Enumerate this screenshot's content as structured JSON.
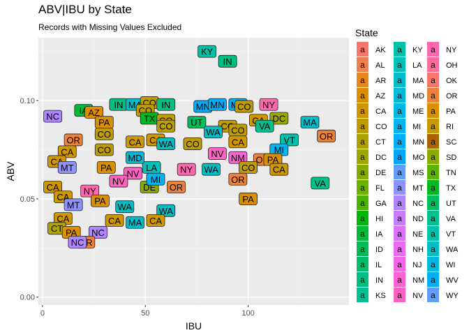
{
  "chart_data": {
    "type": "scatter",
    "title": "ABV|IBU by State",
    "subtitle": "Records with Missing Values Excluded",
    "xlabel": "IBU",
    "ylabel": "ABV",
    "xlim": [
      -2,
      149
    ],
    "ylim": [
      -0.004,
      0.132
    ],
    "xticks": [
      0,
      50,
      100
    ],
    "yticks": [
      0.0,
      0.05,
      0.1
    ],
    "ytick_labels": [
      "0.00",
      "0.05",
      "0.10"
    ],
    "grid": true,
    "legend_title": "State",
    "legend_position": "right",
    "states": [
      "AK",
      "AL",
      "AR",
      "AZ",
      "CA",
      "CO",
      "CT",
      "DC",
      "DE",
      "FL",
      "GA",
      "HI",
      "IA",
      "ID",
      "IL",
      "IN",
      "KS",
      "KY",
      "LA",
      "MA",
      "MD",
      "ME",
      "MI",
      "MN",
      "MO",
      "MS",
      "MT",
      "NC",
      "ND",
      "NE",
      "NH",
      "NJ",
      "NM",
      "NV",
      "NY",
      "OH",
      "OK",
      "OR",
      "PA",
      "RI",
      "SC",
      "SD",
      "TN",
      "TX",
      "UT",
      "VA",
      "VT",
      "WA",
      "WI",
      "WV",
      "WY"
    ],
    "colors": [
      "#F8766D",
      "#F07F4E",
      "#E7861B",
      "#DB8E00",
      "#CE9700",
      "#BF9D00",
      "#AEA200",
      "#9CA700",
      "#87AC00",
      "#6DB000",
      "#4AB400",
      "#00B70C",
      "#00BA38",
      "#00BC56",
      "#00BE6C",
      "#00BF81",
      "#00C094",
      "#00C0A6",
      "#00C0B8",
      "#00BEC9",
      "#00BBD8",
      "#00B8E5",
      "#00B3F1",
      "#00ADFA",
      "#00A5FF",
      "#619CFF",
      "#8D92FF",
      "#AE87FF",
      "#C77CFF",
      "#DB72FB",
      "#EA6AF1",
      "#F564E3",
      "#FD61D3",
      "#FF63C1",
      "#FF68AE",
      "#FF6C99",
      "#F8766D",
      "#EC8239",
      "#DA8F00",
      "#C49A00",
      "#AA6300",
      "#8AAB00",
      "#5EB300",
      "#00B81F",
      "#00BD5C",
      "#00C08B",
      "#00C1AA",
      "#00BFC4",
      "#00BADE",
      "#00B0F6",
      "#619CFF"
    ],
    "points": [
      {
        "state": "KY",
        "ibu": 80,
        "abv": 0.125
      },
      {
        "state": "IN",
        "ibu": 90,
        "abv": 0.12
      },
      {
        "state": "OR",
        "ibu": 138,
        "abv": 0.082
      },
      {
        "state": "VA",
        "ibu": 135,
        "abv": 0.058
      },
      {
        "state": "PA",
        "ibu": 100,
        "abv": 0.05
      },
      {
        "state": "NC",
        "ibu": 5,
        "abv": 0.092
      },
      {
        "state": "MA",
        "ibu": 130,
        "abv": 0.089
      },
      {
        "state": "VT",
        "ibu": 120,
        "abv": 0.08
      },
      {
        "state": "NY",
        "ibu": 110,
        "abv": 0.098
      },
      {
        "state": "MN",
        "ibu": 95,
        "abv": 0.098
      },
      {
        "state": "CO",
        "ibu": 98,
        "abv": 0.097
      },
      {
        "state": "IA",
        "ibu": 20,
        "abv": 0.095
      },
      {
        "state": "AZ",
        "ibu": 25,
        "abv": 0.094
      },
      {
        "state": "IN",
        "ibu": 37,
        "abv": 0.098
      },
      {
        "state": "MA",
        "ibu": 45,
        "abv": 0.098
      },
      {
        "state": "CO",
        "ibu": 52,
        "abv": 0.099
      },
      {
        "state": "IN",
        "ibu": 60,
        "abv": 0.098
      },
      {
        "state": "CO",
        "ibu": 50,
        "abv": 0.095
      },
      {
        "state": "MN",
        "ibu": 78,
        "abv": 0.097
      },
      {
        "state": "MN",
        "ibu": 85,
        "abv": 0.098
      },
      {
        "state": "DC",
        "ibu": 115,
        "abv": 0.091
      },
      {
        "state": "CA",
        "ibu": 105,
        "abv": 0.09
      },
      {
        "state": "TX",
        "ibu": 52,
        "abv": 0.091
      },
      {
        "state": "CO",
        "ibu": 60,
        "abv": 0.09
      },
      {
        "state": "UT",
        "ibu": 75,
        "abv": 0.089
      },
      {
        "state": "PA",
        "ibu": 30,
        "abv": 0.089
      },
      {
        "state": "CO",
        "ibu": 90,
        "abv": 0.087
      },
      {
        "state": "VA",
        "ibu": 108,
        "abv": 0.087
      },
      {
        "state": "CO",
        "ibu": 60,
        "abv": 0.087
      },
      {
        "state": "WA",
        "ibu": 83,
        "abv": 0.084
      },
      {
        "state": "CO",
        "ibu": 95,
        "abv": 0.085
      },
      {
        "state": "OR",
        "ibu": 15,
        "abv": 0.08
      },
      {
        "state": "CO",
        "ibu": 30,
        "abv": 0.083
      },
      {
        "state": "CA",
        "ibu": 45,
        "abv": 0.079
      },
      {
        "state": "CA",
        "ibu": 55,
        "abv": 0.08
      },
      {
        "state": "CO",
        "ibu": 73,
        "abv": 0.078
      },
      {
        "state": "WA",
        "ibu": 60,
        "abv": 0.078
      },
      {
        "state": "CA",
        "ibu": 95,
        "abv": 0.079
      },
      {
        "state": "CO",
        "ibu": 30,
        "abv": 0.075
      },
      {
        "state": "CA",
        "ibu": 12,
        "abv": 0.074
      },
      {
        "state": "MI",
        "ibu": 115,
        "abv": 0.075
      },
      {
        "state": "NV",
        "ibu": 85,
        "abv": 0.073
      },
      {
        "state": "NM",
        "ibu": 95,
        "abv": 0.071
      },
      {
        "state": "CA",
        "ibu": 7,
        "abv": 0.069
      },
      {
        "state": "OR",
        "ibu": 107,
        "abv": 0.07
      },
      {
        "state": "PA",
        "ibu": 112,
        "abv": 0.07
      },
      {
        "state": "MT",
        "ibu": 12,
        "abv": 0.066
      },
      {
        "state": "PA",
        "ibu": 31,
        "abv": 0.066
      },
      {
        "state": "CO",
        "ibu": 100,
        "abv": 0.066
      },
      {
        "state": "CA",
        "ibu": 115,
        "abv": 0.065
      },
      {
        "state": "LA",
        "ibu": 53,
        "abv": 0.066
      },
      {
        "state": "NY",
        "ibu": 70,
        "abv": 0.065
      },
      {
        "state": "WA",
        "ibu": 82,
        "abv": 0.065
      },
      {
        "state": "MD",
        "ibu": 45,
        "abv": 0.071
      },
      {
        "state": "NV",
        "ibu": 44,
        "abv": 0.063
      },
      {
        "state": "CA",
        "ibu": 5,
        "abv": 0.056
      },
      {
        "state": "NY",
        "ibu": 23,
        "abv": 0.054
      },
      {
        "state": "NV",
        "ibu": 37,
        "abv": 0.059
      },
      {
        "state": "DE",
        "ibu": 52,
        "abv": 0.056
      },
      {
        "state": "MI",
        "ibu": 55,
        "abv": 0.06
      },
      {
        "state": "OR",
        "ibu": 65,
        "abv": 0.056
      },
      {
        "state": "OR",
        "ibu": 95,
        "abv": 0.06
      },
      {
        "state": "CA",
        "ibu": 10,
        "abv": 0.051
      },
      {
        "state": "PA",
        "ibu": 28,
        "abv": 0.049
      },
      {
        "state": "MT",
        "ibu": 15,
        "abv": 0.047
      },
      {
        "state": "WA",
        "ibu": 40,
        "abv": 0.046
      },
      {
        "state": "WA",
        "ibu": 60,
        "abv": 0.044
      },
      {
        "state": "CA",
        "ibu": 10,
        "abv": 0.04
      },
      {
        "state": "CA",
        "ibu": 35,
        "abv": 0.039
      },
      {
        "state": "MA",
        "ibu": 45,
        "abv": 0.038
      },
      {
        "state": "CA",
        "ibu": 55,
        "abv": 0.039
      },
      {
        "state": "CT",
        "ibu": 7,
        "abv": 0.035
      },
      {
        "state": "NC",
        "ibu": 27,
        "abv": 0.033
      },
      {
        "state": "PA",
        "ibu": 14,
        "abv": 0.033
      },
      {
        "state": "OR",
        "ibu": 21,
        "abv": 0.028
      },
      {
        "state": "NC",
        "ibu": 17,
        "abv": 0.028
      }
    ]
  }
}
